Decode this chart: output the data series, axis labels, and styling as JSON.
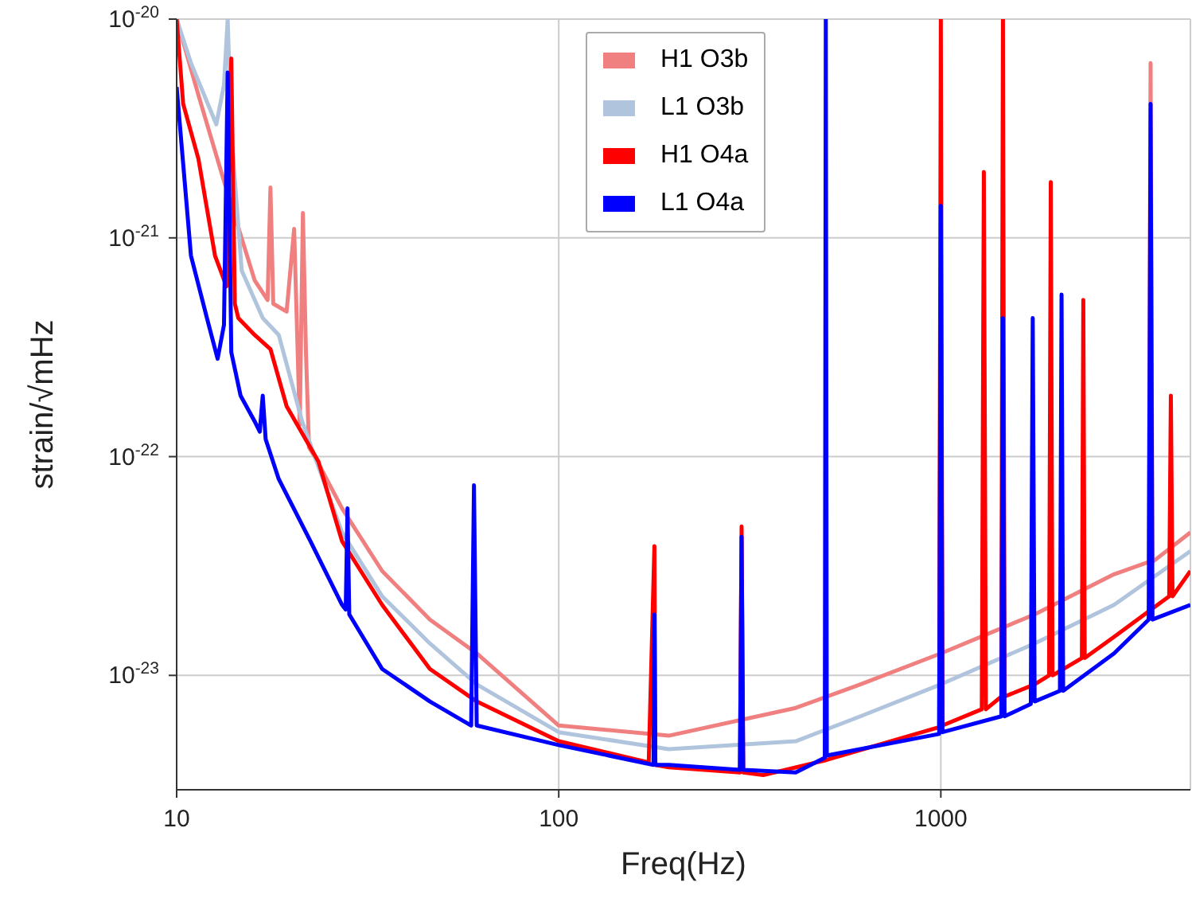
{
  "chart_data": {
    "type": "line",
    "xlabel": "Freq(Hz)",
    "ylabel": "strain/√mHz",
    "log": "xy",
    "grid": true,
    "legend": "top",
    "xlim": [
      10,
      4500
    ],
    "xticks": [
      10,
      100,
      1000
    ],
    "ylim": [
      3e-24,
      1e-20
    ],
    "yticks": [
      {
        "value": 1e-23,
        "label": "10$^{-23}$"
      },
      {
        "value": 1e-22,
        "label": "10$^{-22}$"
      },
      {
        "value": 1e-21,
        "label": "10$^{-21}$"
      },
      {
        "value": 1e-20,
        "label": "10$^{-20}$"
      }
    ],
    "series": [
      {
        "name": "H1 O3b",
        "color": "#f08080",
        "x": [
          10,
          11.4,
          13.2,
          16,
          17.3,
          17.6,
          17.9,
          19.4,
          20.3,
          20.6,
          21,
          21.4,
          21.8,
          22.2,
          23,
          27.1,
          34.5,
          46,
          61,
          100,
          194,
          417,
          616,
          1000,
          1760,
          2840,
          3500,
          3540,
          3580,
          4500
        ],
        "values": [
          1e-20,
          4.5e-21,
          1.9e-21,
          6.4e-22,
          5.2e-22,
          1.7e-21,
          5e-22,
          4.6e-22,
          1.1e-21,
          4.5e-22,
          1.4e-22,
          1.3e-21,
          3e-22,
          1.1e-22,
          1e-22,
          5.8e-23,
          3e-23,
          1.8e-23,
          1.26e-23,
          5.9e-24,
          5.3e-24,
          7.1e-24,
          9.1e-24,
          1.26e-23,
          1.9e-23,
          2.9e-23,
          3.3e-23,
          6.3e-21,
          3.3e-23,
          4.5e-23
        ]
      },
      {
        "name": "L1 O3b",
        "color": "#b0c4de",
        "x": [
          10,
          10.9,
          12.7,
          13.3,
          13.6,
          13.9,
          14.8,
          16.8,
          18.5,
          21.3,
          27.1,
          34.5,
          46,
          61,
          100,
          194,
          417,
          616,
          1000,
          1760,
          2840,
          4500
        ],
        "values": [
          1e-20,
          6.3e-21,
          3.3e-21,
          5e-21,
          1e-20,
          3e-21,
          7.1e-22,
          4.3e-22,
          3.6e-22,
          1.45e-22,
          4.5e-23,
          2.3e-23,
          1.4e-23,
          9.1e-24,
          5.5e-24,
          4.6e-24,
          5e-24,
          6.5e-24,
          9.1e-24,
          1.4e-23,
          2.1e-23,
          3.7e-23
        ]
      },
      {
        "name": "H1 O4a",
        "color": "#ff0000",
        "x": [
          10,
          10.4,
          11.4,
          12.6,
          13.5,
          13.9,
          14.2,
          14.5,
          16,
          17.6,
          19.4,
          23.5,
          27.1,
          34.5,
          46,
          61,
          100,
          172,
          178,
          179,
          194,
          298,
          301,
          304,
          343,
          501,
          990,
          1000,
          1010,
          1280,
          1296,
          1312,
          1440,
          1454,
          1468,
          1760,
          1920,
          1940,
          1960,
          2340,
          2360,
          2380,
          2840,
          3960,
          4000,
          4040,
          4500
        ],
        "values": [
          1e-20,
          4.1e-21,
          2.3e-21,
          8.3e-22,
          6e-22,
          6.6e-21,
          5e-22,
          4.3e-22,
          3.6e-22,
          3.1e-22,
          1.7e-22,
          9.5e-23,
          4.1e-23,
          2.1e-23,
          1.07e-23,
          7.6e-24,
          5e-24,
          4e-24,
          3.9e-23,
          3.9e-24,
          3.8e-24,
          3.6e-24,
          4.8e-23,
          3.6e-24,
          3.5e-24,
          4.1e-24,
          5.8e-24,
          1e-20,
          5.9e-24,
          7e-24,
          2e-21,
          7e-24,
          8e-24,
          1e-20,
          8e-24,
          9.1e-24,
          1e-23,
          1.8e-21,
          1e-23,
          1.2e-23,
          5.2e-22,
          1.2e-23,
          1.5e-23,
          2.3e-23,
          1.9e-22,
          2.3e-23,
          3e-23
        ]
      },
      {
        "name": "L1 O4a",
        "color": "#0000ff",
        "x": [
          10,
          10.9,
          12,
          12.8,
          13.3,
          13.6,
          13.9,
          14.7,
          16,
          16.5,
          16.8,
          17.1,
          18.5,
          22.4,
          27.1,
          27.7,
          28,
          28.3,
          34.5,
          46,
          59,
          60,
          61,
          100,
          177,
          178,
          179,
          194,
          298,
          301,
          304,
          417,
          497,
          500,
          503,
          990,
          1000,
          1010,
          1440,
          1454,
          1468,
          1720,
          1740,
          1760,
          2050,
          2070,
          2090,
          2840,
          3500,
          3540,
          3580,
          4500
        ],
        "values": [
          4.9e-21,
          8.3e-22,
          4.3e-22,
          2.8e-22,
          4e-22,
          5.7e-21,
          3e-22,
          1.9e-22,
          1.45e-22,
          1.3e-22,
          1.9e-22,
          1.2e-22,
          7.9e-23,
          4.1e-23,
          2.1e-23,
          2e-23,
          5.8e-23,
          1.9e-23,
          1.07e-23,
          7.6e-24,
          5.9e-24,
          7.4e-23,
          5.9e-24,
          4.8e-24,
          3.9e-24,
          1.9e-23,
          3.9e-24,
          3.9e-24,
          3.7e-24,
          4.3e-23,
          3.7e-24,
          3.6e-24,
          4.2e-24,
          1e-20,
          4.3e-24,
          5.4e-24,
          1.4e-21,
          5.5e-24,
          6.5e-24,
          4.3e-22,
          6.5e-24,
          7.4e-24,
          4.3e-22,
          7.6e-24,
          8.5e-24,
          5.5e-22,
          8.5e-24,
          1.26e-23,
          1.8e-23,
          4.1e-21,
          1.8e-23,
          2.1e-23
        ]
      }
    ]
  }
}
